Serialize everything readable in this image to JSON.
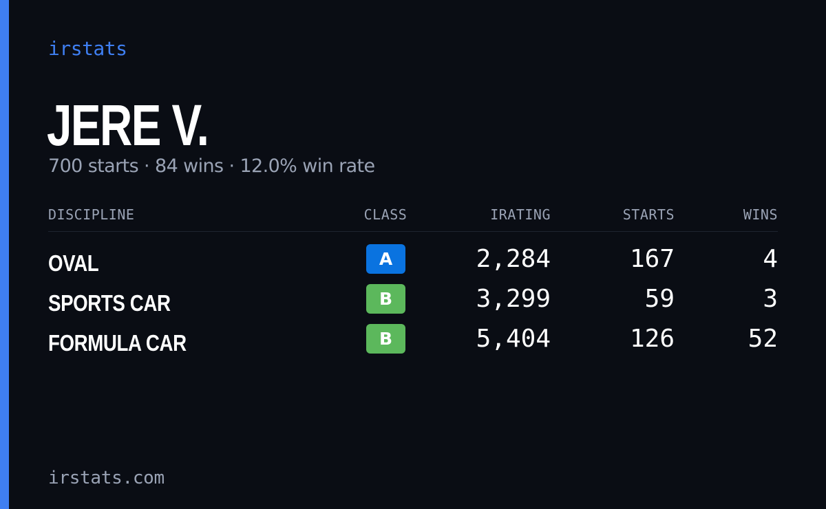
{
  "brand": "irstats",
  "driver": {
    "name": "JERE V.",
    "summary": "700 starts · 84 wins · 12.0% win rate"
  },
  "table": {
    "headers": {
      "discipline": "DISCIPLINE",
      "class": "CLASS",
      "irating": "IRATING",
      "starts": "STARTS",
      "wins": "WINS"
    },
    "rows": [
      {
        "discipline": "OVAL",
        "class": "A",
        "class_color": "#0a73e0",
        "irating": "2,284",
        "starts": "167",
        "wins": "4"
      },
      {
        "discipline": "SPORTS CAR",
        "class": "B",
        "class_color": "#5cb85c",
        "irating": "3,299",
        "starts": "59",
        "wins": "3"
      },
      {
        "discipline": "FORMULA CAR",
        "class": "B",
        "class_color": "#5cb85c",
        "irating": "5,404",
        "starts": "126",
        "wins": "52"
      }
    ]
  },
  "footer": "irstats.com",
  "colors": {
    "background": "#0a0d14",
    "accent": "#3f7ff2",
    "muted_text": "#9aa3b5",
    "class_a": "#0a73e0",
    "class_b": "#5cb85c"
  }
}
